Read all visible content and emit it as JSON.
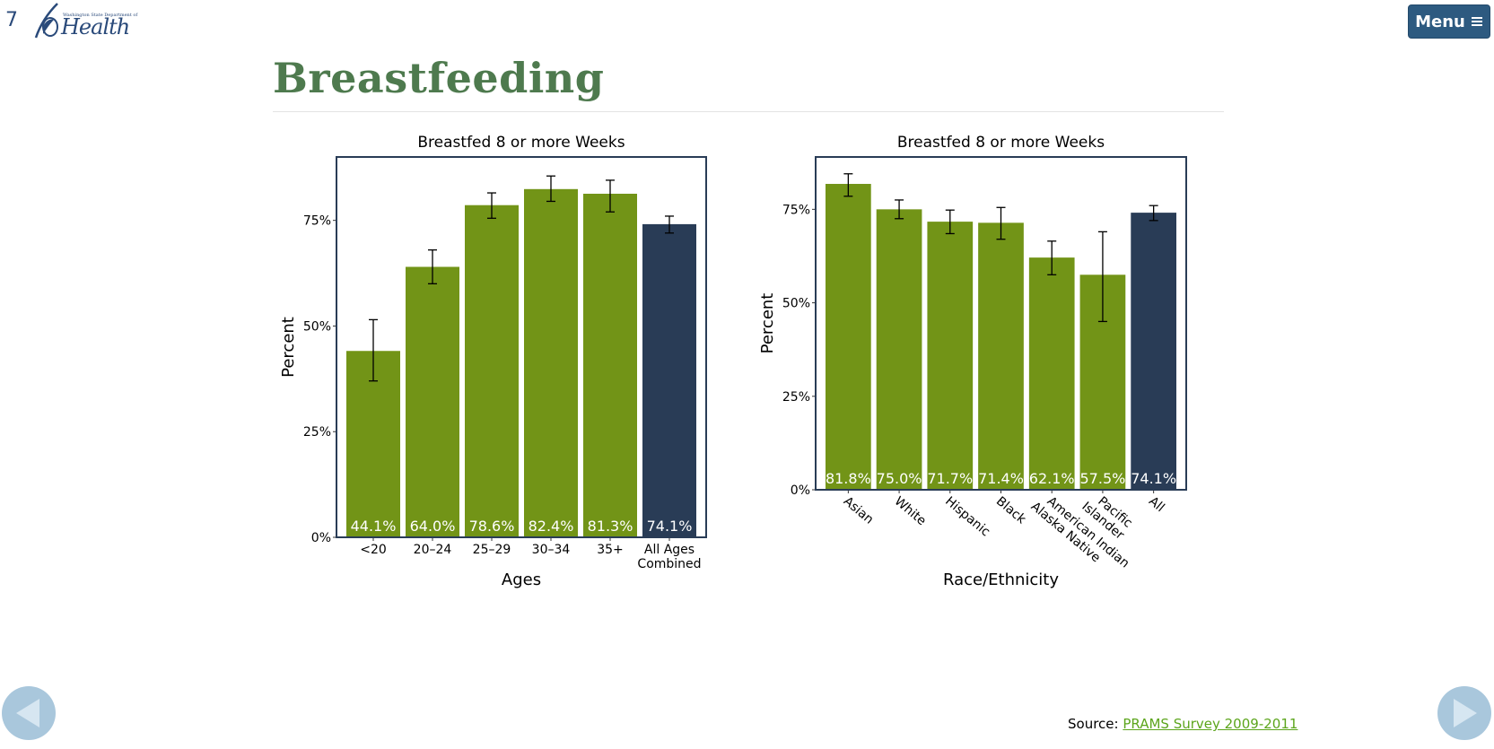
{
  "slide_number": "7",
  "logo": {
    "small_text": "Washington State Department of",
    "big_text": "Health"
  },
  "menu": {
    "label": "Menu",
    "icon": "hamburger-icon"
  },
  "page_title": "Breastfeeding",
  "colors": {
    "group_bar": "#729417",
    "overall_bar": "#293c56",
    "frame": "#293c56",
    "title": "#4e7a4e"
  },
  "chart_data": [
    {
      "type": "bar",
      "title": "Breastfed 8 or more Weeks",
      "xlabel": "Ages",
      "ylabel": "Percent",
      "ylim": [
        0,
        90
      ],
      "yticks": [
        0,
        25,
        50,
        75
      ],
      "ytick_labels": [
        "0%",
        "25%",
        "50%",
        "75%"
      ],
      "categories": [
        [
          "<20"
        ],
        [
          "20–24"
        ],
        [
          "25–29"
        ],
        [
          "30–34"
        ],
        [
          "35+"
        ],
        [
          "All Ages",
          "Combined"
        ]
      ],
      "values": [
        44.1,
        64.0,
        78.6,
        82.4,
        81.3,
        74.1
      ],
      "value_labels": [
        "44.1%",
        "64.0%",
        "78.6%",
        "82.4%",
        "81.3%",
        "74.1%"
      ],
      "ci_low": [
        37.0,
        60.0,
        75.5,
        79.5,
        77.0,
        72.0
      ],
      "ci_high": [
        51.5,
        68.0,
        81.5,
        85.5,
        84.5,
        76.0
      ],
      "highlight_last": true
    },
    {
      "type": "bar",
      "title": "Breastfed 8 or more Weeks",
      "xlabel": "Race/Ethnicity",
      "ylabel": "Percent",
      "ylim": [
        0,
        89
      ],
      "yticks": [
        0,
        25,
        50,
        75
      ],
      "ytick_labels": [
        "0%",
        "25%",
        "50%",
        "75%"
      ],
      "categories": [
        [
          "Asian"
        ],
        [
          "White"
        ],
        [
          "Hispanic"
        ],
        [
          "Black"
        ],
        [
          "American Indian",
          "Alaska Native"
        ],
        [
          "Pacific",
          "Islander"
        ],
        [
          "All"
        ]
      ],
      "values": [
        81.8,
        75.0,
        71.7,
        71.4,
        62.1,
        57.5,
        74.1
      ],
      "value_labels": [
        "81.8%",
        "75.0%",
        "71.7%",
        "71.4%",
        "62.1%",
        "57.5%",
        "74.1%"
      ],
      "ci_low": [
        78.5,
        72.5,
        68.5,
        67.0,
        57.5,
        45.0,
        72.0
      ],
      "ci_high": [
        84.5,
        77.5,
        74.8,
        75.5,
        66.5,
        69.0,
        76.0
      ],
      "tick_label_rotation": 40,
      "highlight_last": true
    }
  ],
  "source": {
    "prefix": "Source: ",
    "link_text": "PRAMS Survey 2009-2011"
  },
  "nav": {
    "prev": "previous-arrow-icon",
    "next": "next-arrow-icon"
  }
}
